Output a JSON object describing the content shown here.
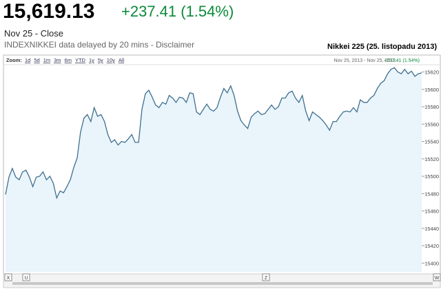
{
  "header": {
    "price": "15,619.13",
    "change": "+237.41 (1.54%)",
    "date_label": "Nov 25 - Close",
    "note": "INDEXNIKKEI data delayed by 20 mins - Disclaimer"
  },
  "chart_data": {
    "type": "line",
    "title": "Nikkei 225 (25. listopadu 2013)",
    "zoom_label": "Zoom:",
    "zoom_options": [
      "1d",
      "5d",
      "1m",
      "3m",
      "6m",
      "YTD",
      "1y",
      "5y",
      "10y",
      "All"
    ],
    "range_label": "Nov 25, 2013 - Nov 25, 2013",
    "range_change": "+237.41 (1.54%)",
    "scroll_markers": [
      "X",
      "U",
      "Z",
      "W"
    ],
    "color": "#3e6f8e",
    "fill": "#e9f4fb",
    "ylim": [
      15390,
      15630
    ],
    "yticks": [
      15400,
      15420,
      15440,
      15460,
      15480,
      15500,
      15520,
      15540,
      15560,
      15580,
      15600,
      15620
    ],
    "values": [
      15479,
      15499,
      15509,
      15499,
      15496,
      15505,
      15507,
      15499,
      15488,
      15499,
      15500,
      15505,
      15496,
      15500,
      15492,
      15475,
      15483,
      15481,
      15488,
      15496,
      15510,
      15521,
      15551,
      15567,
      15571,
      15563,
      15579,
      15569,
      15571,
      15563,
      15548,
      15539,
      15542,
      15536,
      15540,
      15539,
      15543,
      15548,
      15539,
      15539,
      15577,
      15595,
      15599,
      15591,
      15582,
      15579,
      15585,
      15583,
      15593,
      15590,
      15585,
      15591,
      15590,
      15585,
      15596,
      15595,
      15574,
      15571,
      15577,
      15583,
      15577,
      15575,
      15579,
      15591,
      15601,
      15596,
      15604,
      15593,
      15575,
      15564,
      15559,
      15555,
      15568,
      15572,
      15575,
      15571,
      15572,
      15577,
      15582,
      15577,
      15580,
      15590,
      15590,
      15596,
      15598,
      15590,
      15585,
      15593,
      15575,
      15564,
      15574,
      15571,
      15568,
      15564,
      15559,
      15553,
      15563,
      15563,
      15569,
      15574,
      15575,
      15574,
      15579,
      15574,
      15588,
      15585,
      15585,
      15590,
      15593,
      15601,
      15607,
      15610,
      15618,
      15623,
      15625,
      15620,
      15618,
      15623,
      15618,
      15621,
      15615,
      15618,
      15619
    ]
  }
}
